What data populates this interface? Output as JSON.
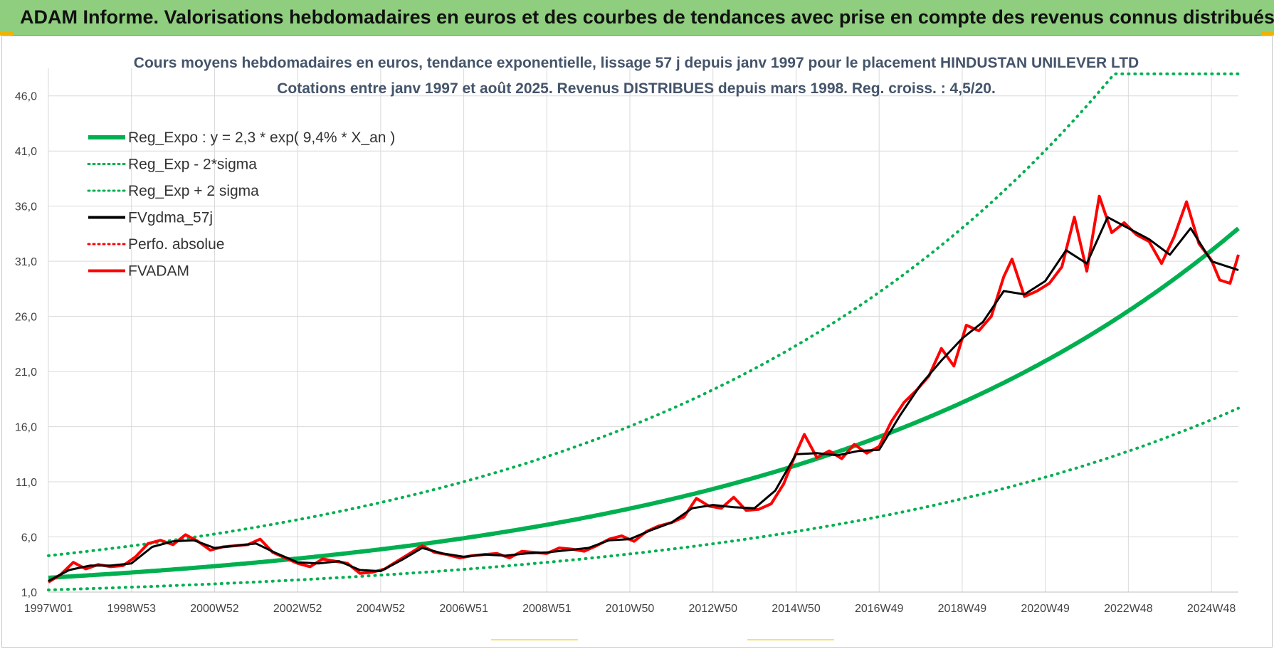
{
  "header": {
    "title": "ADAM Informe. Valorisations hebdomadaires en euros et des courbes de tendances avec prise en compte des revenus connus distribués"
  },
  "colors": {
    "header_bg": "#8fce7e",
    "trend": "#00b050",
    "smooth": "#000000",
    "value": "#ff0000",
    "title_text": "#44546a"
  },
  "chart_data": {
    "type": "line",
    "title": "Cours moyens hebdomadaires en euros, tendance exponentielle, lissage 57 j depuis janv 1997 pour le placement HINDUSTAN UNILEVER LTD",
    "subtitle": "Cotations entre janv 1997 et août 2025. Revenus DISTRIBUES depuis mars 1998. Reg. croiss. : 4,5/20.",
    "xlabel": "",
    "ylabel": "",
    "xlim": [
      1997.0,
      2025.65
    ],
    "ylim": [
      1.0,
      48.5
    ],
    "y_ticks": [
      "1,0",
      "6,0",
      "11,0",
      "16,0",
      "21,0",
      "26,0",
      "31,0",
      "36,0",
      "41,0",
      "46,0"
    ],
    "y_tick_values": [
      1,
      6,
      11,
      16,
      21,
      26,
      31,
      36,
      41,
      46
    ],
    "x_ticks": [
      "1997W01",
      "1998W53",
      "2000W52",
      "2002W52",
      "2004W52",
      "2006W51",
      "2008W51",
      "2010W50",
      "2012W50",
      "2014W50",
      "2016W49",
      "2018W49",
      "2020W49",
      "2022W48",
      "2024W48"
    ],
    "x_tick_values": [
      1997.0,
      1999.0,
      2001.0,
      2003.0,
      2005.0,
      2007.0,
      2009.0,
      2011.0,
      2013.0,
      2015.0,
      2017.0,
      2019.0,
      2021.0,
      2023.0,
      2025.0
    ],
    "grid": true,
    "legend_position": "top-left",
    "legend": [
      {
        "label": "Reg_Expo : y = 2,3 * exp( 9,4% *  X_an )",
        "style": "solid-thick",
        "color": "#00b050"
      },
      {
        "label": "Reg_Exp - 2*sigma",
        "style": "dotted",
        "color": "#00b050"
      },
      {
        "label": "Reg_Exp + 2 sigma",
        "style": "dotted",
        "color": "#00b050"
      },
      {
        "label": "FVgdma_57j",
        "style": "solid",
        "color": "#000000"
      },
      {
        "label": "Perfo. absolue",
        "style": "dotted",
        "color": "#ff0000"
      },
      {
        "label": "FVADAM",
        "style": "solid",
        "color": "#ff0000"
      }
    ],
    "trend": {
      "a": 2.3,
      "rate": 0.094,
      "start": 1997.0,
      "lower_factor": 0.52,
      "upper_factor": 1.87,
      "upper_cap": 48.0
    },
    "series": [
      {
        "name": "FVADAM",
        "x": [
          1997.0,
          1997.3,
          1997.6,
          1997.9,
          1998.2,
          1998.5,
          1998.8,
          1999.1,
          1999.4,
          1999.7,
          2000.0,
          2000.3,
          2000.6,
          2000.9,
          2001.2,
          2001.5,
          2001.8,
          2002.1,
          2002.4,
          2002.7,
          2003.0,
          2003.3,
          2003.6,
          2003.9,
          2004.2,
          2004.5,
          2004.8,
          2005.1,
          2005.4,
          2005.7,
          2006.0,
          2006.3,
          2006.6,
          2006.9,
          2007.2,
          2007.5,
          2007.8,
          2008.1,
          2008.4,
          2008.7,
          2009.0,
          2009.3,
          2009.6,
          2009.9,
          2010.2,
          2010.5,
          2010.8,
          2011.1,
          2011.4,
          2011.7,
          2012.0,
          2012.3,
          2012.6,
          2012.9,
          2013.2,
          2013.5,
          2013.8,
          2014.1,
          2014.4,
          2014.7,
          2015.0,
          2015.2,
          2015.5,
          2015.8,
          2016.1,
          2016.4,
          2016.7,
          2017.0,
          2017.3,
          2017.6,
          2017.9,
          2018.2,
          2018.5,
          2018.8,
          2019.1,
          2019.4,
          2019.7,
          2020.0,
          2020.2,
          2020.5,
          2020.8,
          2021.1,
          2021.4,
          2021.7,
          2022.0,
          2022.3,
          2022.6,
          2022.9,
          2023.2,
          2023.5,
          2023.8,
          2024.1,
          2024.4,
          2024.7,
          2025.0,
          2025.2,
          2025.45,
          2025.65
        ],
        "values": [
          1.9,
          2.6,
          3.7,
          3.1,
          3.5,
          3.3,
          3.4,
          4.2,
          5.4,
          5.7,
          5.3,
          6.2,
          5.6,
          4.8,
          5.1,
          5.2,
          5.3,
          5.8,
          4.6,
          4.1,
          3.6,
          3.3,
          4.0,
          3.8,
          3.6,
          2.7,
          2.8,
          3.1,
          3.8,
          4.5,
          5.2,
          4.6,
          4.4,
          4.1,
          4.3,
          4.4,
          4.5,
          4.1,
          4.7,
          4.6,
          4.5,
          5.0,
          4.9,
          4.7,
          5.2,
          5.8,
          6.1,
          5.6,
          6.5,
          7.0,
          7.3,
          7.8,
          9.5,
          8.8,
          8.6,
          9.6,
          8.4,
          8.5,
          9.0,
          10.8,
          13.6,
          15.3,
          13.2,
          13.8,
          13.1,
          14.4,
          13.6,
          14.2,
          16.5,
          18.2,
          19.3,
          20.6,
          23.1,
          21.5,
          25.2,
          24.7,
          26.0,
          29.6,
          31.2,
          27.8,
          28.3,
          29.0,
          30.5,
          35.0,
          30.1,
          36.9,
          33.6,
          34.5,
          33.4,
          32.8,
          30.8,
          33.2,
          36.4,
          32.6,
          31.1,
          29.3,
          29.0,
          31.6
        ]
      },
      {
        "name": "FVgdma_57j",
        "x": [
          1997.0,
          1997.5,
          1998.0,
          1998.5,
          1999.0,
          1999.5,
          2000.0,
          2000.5,
          2001.0,
          2001.5,
          2002.0,
          2002.5,
          2003.0,
          2003.5,
          2004.0,
          2004.5,
          2005.0,
          2005.5,
          2006.0,
          2006.5,
          2007.0,
          2007.5,
          2008.0,
          2008.5,
          2009.0,
          2009.5,
          2010.0,
          2010.5,
          2011.0,
          2011.5,
          2012.0,
          2012.5,
          2013.0,
          2013.5,
          2014.0,
          2014.5,
          2015.0,
          2015.5,
          2016.0,
          2016.5,
          2017.0,
          2017.5,
          2018.0,
          2018.5,
          2019.0,
          2019.5,
          2020.0,
          2020.5,
          2021.0,
          2021.5,
          2022.0,
          2022.5,
          2023.0,
          2023.5,
          2024.0,
          2024.5,
          2025.0,
          2025.65
        ],
        "values": [
          2.0,
          3.0,
          3.4,
          3.4,
          3.6,
          5.1,
          5.6,
          5.7,
          5.0,
          5.2,
          5.4,
          4.5,
          3.7,
          3.6,
          3.8,
          3.0,
          2.9,
          3.9,
          5.0,
          4.5,
          4.2,
          4.4,
          4.3,
          4.5,
          4.6,
          4.8,
          5.0,
          5.7,
          5.8,
          6.6,
          7.3,
          8.6,
          8.9,
          8.7,
          8.6,
          10.2,
          13.5,
          13.6,
          13.4,
          13.8,
          13.9,
          17.0,
          19.8,
          22.0,
          24.0,
          25.5,
          28.3,
          28.0,
          29.2,
          32.0,
          30.8,
          35.0,
          34.0,
          33.0,
          31.6,
          34.0,
          31.0,
          30.2
        ]
      }
    ]
  }
}
